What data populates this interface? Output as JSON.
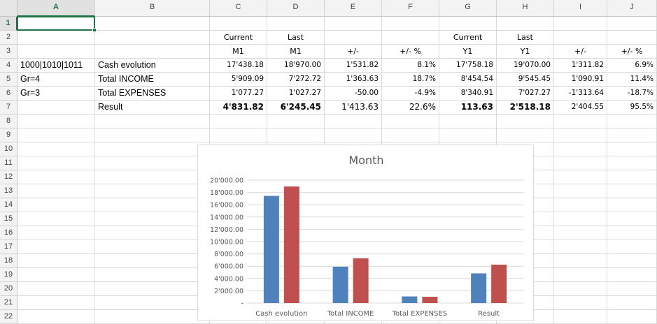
{
  "spreadsheet": {
    "columns": [
      "A",
      "B",
      "C",
      "D",
      "E",
      "F",
      "G",
      "H",
      "I",
      "J"
    ],
    "rows": [
      "1",
      "2",
      "3",
      "4",
      "5",
      "6",
      "7",
      "8",
      "9",
      "10",
      "11",
      "12",
      "13",
      "14",
      "15",
      "16",
      "17",
      "18",
      "19",
      "20",
      "21",
      "22"
    ],
    "active_cell": "A1",
    "header_row1": {
      "c": "Current",
      "d": "Last",
      "g": "Current",
      "h": "Last"
    },
    "header_row2": {
      "c": "M1",
      "d": "M1",
      "e": "+/-",
      "f": "+/- %",
      "g": "Y1",
      "h": "Y1",
      "i": "+/-",
      "j": "+/- %"
    },
    "data_rows": [
      {
        "a": "1000|1010|1011",
        "b": "Cash evolution",
        "c": "17'438.18",
        "d": "18'970.00",
        "e": "1'531.82",
        "f": "8.1%",
        "g": "17'758.18",
        "h": "19'070.00",
        "i": "1'311.82",
        "j": "6.9%"
      },
      {
        "a": "Gr=4",
        "b": "Total INCOME",
        "c": "5'909.09",
        "d": "7'272.72",
        "e": "1'363.63",
        "f": "18.7%",
        "g": "8'454.54",
        "h": "9'545.45",
        "i": "1'090.91",
        "j": "11.4%"
      },
      {
        "a": "Gr=3",
        "b": "Total EXPENSES",
        "c": "1'077.27",
        "d": "1'027.27",
        "e": "-50.00",
        "f": "-4.9%",
        "g": "8'340.91",
        "h": "7'027.27",
        "i": "-1'313.64",
        "j": "-18.7%"
      },
      {
        "a": "",
        "b": "Result",
        "c": "4'831.82",
        "d": "6'245.45",
        "e": "1'413.63",
        "f": "22.6%",
        "g": "113.63",
        "h": "2'518.18",
        "i": "2'404.55",
        "j": "95.5%"
      }
    ]
  },
  "chart_data": {
    "type": "bar",
    "title": "Month",
    "categories": [
      "Cash evolution",
      "Total INCOME",
      "Total EXPENSES",
      "Result"
    ],
    "series": [
      {
        "values": [
          17438.18,
          5909.09,
          1077.27,
          4831.82
        ],
        "color": "#4f81bd"
      },
      {
        "values": [
          18970.0,
          7272.72,
          1027.27,
          6245.45
        ],
        "color": "#c0504d"
      }
    ],
    "ylim": [
      0,
      20000
    ],
    "y_ticks": [
      "-",
      "2'000.00",
      "4'000.00",
      "6'000.00",
      "8'000.00",
      "10'000.00",
      "12'000.00",
      "14'000.00",
      "16'000.00",
      "18'000.00",
      "20'000.00"
    ],
    "grid": true,
    "legend": "none"
  }
}
